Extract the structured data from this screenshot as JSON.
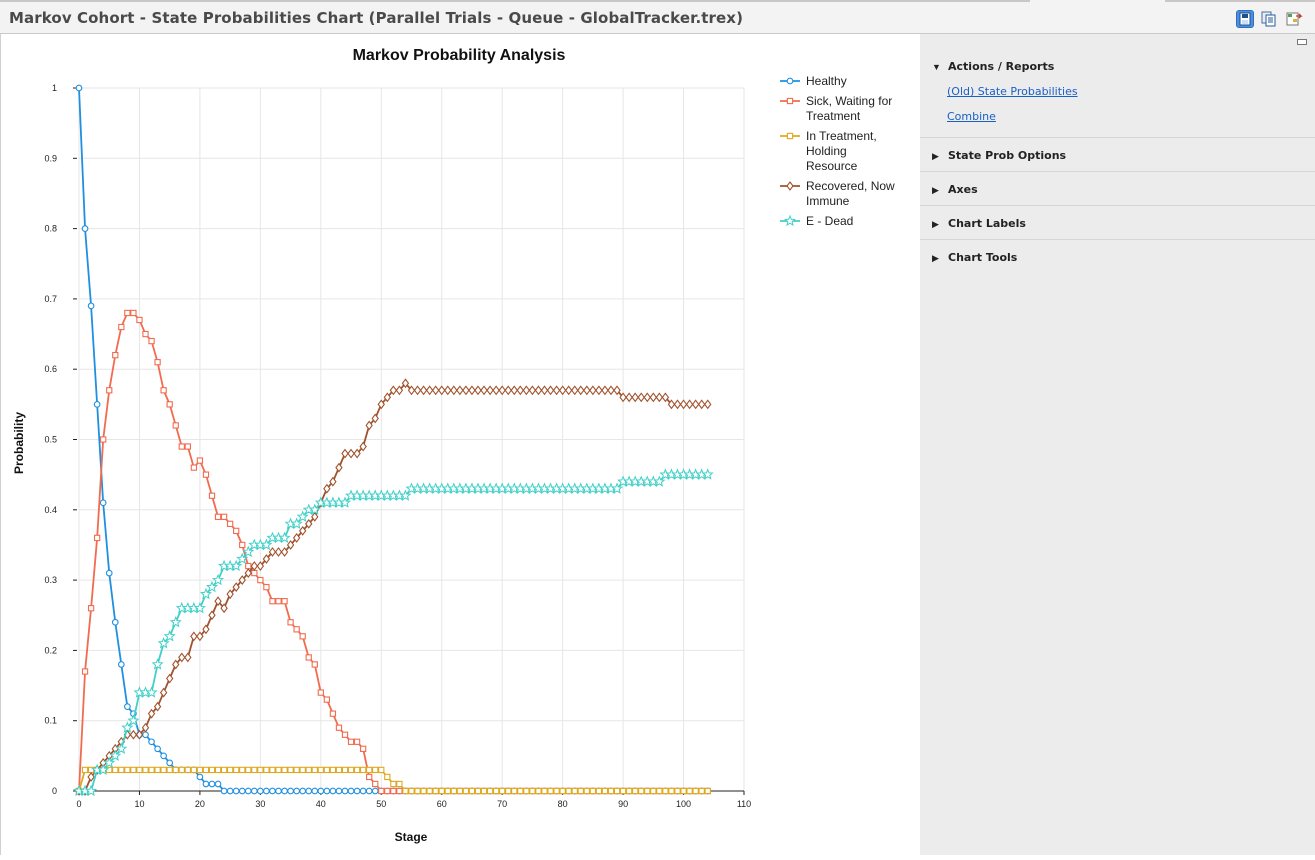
{
  "window": {
    "title": "Markov Cohort - State Probabilities Chart (Parallel Trials - Queue - GlobalTracker.trex)"
  },
  "toolbar": {
    "icons": [
      "save-icon",
      "copy-icon",
      "export-icon"
    ]
  },
  "sidebar": {
    "sections": [
      {
        "label": "Actions / Reports",
        "expanded": true,
        "links": [
          "(Old) State Probabilities",
          "Combine"
        ]
      },
      {
        "label": "State Prob Options",
        "expanded": false
      },
      {
        "label": "Axes",
        "expanded": false
      },
      {
        "label": "Chart Labels",
        "expanded": false
      },
      {
        "label": "Chart Tools",
        "expanded": false
      }
    ]
  },
  "chart_data": {
    "type": "line",
    "title": "Markov Probability Analysis",
    "xlabel": "Stage",
    "ylabel": "Probability",
    "xlim": [
      0,
      110
    ],
    "ylim": [
      0,
      1
    ],
    "x_ticks": [
      0,
      10,
      20,
      30,
      40,
      50,
      60,
      70,
      80,
      90,
      100,
      110
    ],
    "y_ticks": [
      0,
      0.1,
      0.2,
      0.3,
      0.4,
      0.5,
      0.6,
      0.7,
      0.8,
      0.9,
      1
    ],
    "y_tick_labels": [
      "0",
      "0.1",
      "0.2",
      "0.3",
      "0.4",
      "0.5",
      "0.6",
      "0.7",
      "0.8",
      "0.9",
      "1"
    ],
    "grid": true,
    "legend_position": "right",
    "x": [
      0,
      1,
      2,
      3,
      4,
      5,
      6,
      7,
      8,
      9,
      10,
      11,
      12,
      13,
      14,
      15,
      16,
      17,
      18,
      19,
      20,
      21,
      22,
      23,
      24,
      25,
      26,
      27,
      28,
      29,
      30,
      31,
      32,
      33,
      34,
      35,
      36,
      37,
      38,
      39,
      40,
      41,
      42,
      43,
      44,
      45,
      46,
      47,
      48,
      49,
      50,
      51,
      52,
      53,
      54,
      55,
      56,
      57,
      58,
      59,
      60,
      61,
      62,
      63,
      64,
      65,
      66,
      67,
      68,
      69,
      70,
      71,
      72,
      73,
      74,
      75,
      76,
      77,
      78,
      79,
      80,
      81,
      82,
      83,
      84,
      85,
      86,
      87,
      88,
      89,
      90,
      91,
      92,
      93,
      94,
      95,
      96,
      97,
      98,
      99,
      100,
      101,
      102,
      103,
      104
    ],
    "series": [
      {
        "name": "Healthy",
        "color": "#1f8fe0",
        "marker": "circle",
        "values": [
          1,
          0.8,
          0.69,
          0.55,
          0.41,
          0.31,
          0.24,
          0.18,
          0.12,
          0.11,
          0.08,
          0.08,
          0.07,
          0.06,
          0.05,
          0.04,
          0.03,
          0.03,
          0.03,
          0.03,
          0.02,
          0.01,
          0.01,
          0.01,
          0,
          0,
          0,
          0,
          0,
          0,
          0,
          0,
          0,
          0,
          0,
          0,
          0,
          0,
          0,
          0,
          0,
          0,
          0,
          0,
          0,
          0,
          0,
          0,
          0,
          0,
          0,
          0,
          0,
          0,
          0,
          0,
          0,
          0,
          0,
          0,
          0,
          0,
          0,
          0,
          0,
          0,
          0,
          0,
          0,
          0,
          0,
          0,
          0,
          0,
          0,
          0,
          0,
          0,
          0,
          0,
          0,
          0,
          0,
          0,
          0,
          0,
          0,
          0,
          0,
          0,
          0,
          0,
          0,
          0,
          0,
          0,
          0,
          0,
          0,
          0,
          0,
          0,
          0,
          0,
          0
        ]
      },
      {
        "name": "Sick, Waiting for Treatment",
        "color": "#f26b4f",
        "marker": "square",
        "values": [
          0,
          0.17,
          0.26,
          0.36,
          0.5,
          0.57,
          0.62,
          0.66,
          0.68,
          0.68,
          0.67,
          0.65,
          0.64,
          0.61,
          0.57,
          0.55,
          0.52,
          0.49,
          0.49,
          0.46,
          0.47,
          0.45,
          0.42,
          0.39,
          0.39,
          0.38,
          0.37,
          0.35,
          0.32,
          0.31,
          0.3,
          0.29,
          0.27,
          0.27,
          0.27,
          0.24,
          0.23,
          0.22,
          0.19,
          0.18,
          0.14,
          0.13,
          0.11,
          0.09,
          0.08,
          0.07,
          0.07,
          0.06,
          0.02,
          0.01,
          0,
          0,
          0,
          0,
          0,
          0,
          0,
          0,
          0,
          0,
          0,
          0,
          0,
          0,
          0,
          0,
          0,
          0,
          0,
          0,
          0,
          0,
          0,
          0,
          0,
          0,
          0,
          0,
          0,
          0,
          0,
          0,
          0,
          0,
          0,
          0,
          0,
          0,
          0,
          0,
          0,
          0,
          0,
          0,
          0,
          0,
          0,
          0,
          0,
          0,
          0,
          0,
          0,
          0,
          0
        ]
      },
      {
        "name": "In Treatment, Holding Resource",
        "color": "#e0a81e",
        "marker": "square",
        "values": [
          0,
          0.03,
          0.03,
          0.03,
          0.03,
          0.03,
          0.03,
          0.03,
          0.03,
          0.03,
          0.03,
          0.03,
          0.03,
          0.03,
          0.03,
          0.03,
          0.03,
          0.03,
          0.03,
          0.03,
          0.03,
          0.03,
          0.03,
          0.03,
          0.03,
          0.03,
          0.03,
          0.03,
          0.03,
          0.03,
          0.03,
          0.03,
          0.03,
          0.03,
          0.03,
          0.03,
          0.03,
          0.03,
          0.03,
          0.03,
          0.03,
          0.03,
          0.03,
          0.03,
          0.03,
          0.03,
          0.03,
          0.03,
          0.03,
          0.03,
          0.03,
          0.02,
          0.01,
          0.01,
          0,
          0,
          0,
          0,
          0,
          0,
          0,
          0,
          0,
          0,
          0,
          0,
          0,
          0,
          0,
          0,
          0,
          0,
          0,
          0,
          0,
          0,
          0,
          0,
          0,
          0,
          0,
          0,
          0,
          0,
          0,
          0,
          0,
          0,
          0,
          0,
          0,
          0,
          0,
          0,
          0,
          0,
          0,
          0,
          0,
          0,
          0,
          0,
          0,
          0,
          0
        ]
      },
      {
        "name": "Recovered, Now Immune",
        "color": "#a0522d",
        "marker": "diamond",
        "values": [
          0,
          0,
          0.02,
          0.03,
          0.04,
          0.05,
          0.06,
          0.07,
          0.08,
          0.08,
          0.08,
          0.09,
          0.11,
          0.12,
          0.14,
          0.16,
          0.18,
          0.19,
          0.19,
          0.22,
          0.22,
          0.23,
          0.25,
          0.27,
          0.26,
          0.28,
          0.29,
          0.3,
          0.31,
          0.32,
          0.32,
          0.33,
          0.34,
          0.34,
          0.34,
          0.35,
          0.36,
          0.37,
          0.38,
          0.39,
          0.41,
          0.43,
          0.44,
          0.46,
          0.48,
          0.48,
          0.48,
          0.49,
          0.52,
          0.53,
          0.55,
          0.56,
          0.57,
          0.57,
          0.58,
          0.57,
          0.57,
          0.57,
          0.57,
          0.57,
          0.57,
          0.57,
          0.57,
          0.57,
          0.57,
          0.57,
          0.57,
          0.57,
          0.57,
          0.57,
          0.57,
          0.57,
          0.57,
          0.57,
          0.57,
          0.57,
          0.57,
          0.57,
          0.57,
          0.57,
          0.57,
          0.57,
          0.57,
          0.57,
          0.57,
          0.57,
          0.57,
          0.57,
          0.57,
          0.57,
          0.56,
          0.56,
          0.56,
          0.56,
          0.56,
          0.56,
          0.56,
          0.56,
          0.55,
          0.55,
          0.55,
          0.55,
          0.55,
          0.55,
          0.55
        ]
      },
      {
        "name": "E - Dead",
        "color": "#40d0c8",
        "marker": "star",
        "values": [
          0,
          0,
          0,
          0.03,
          0.03,
          0.04,
          0.05,
          0.06,
          0.09,
          0.1,
          0.14,
          0.14,
          0.14,
          0.18,
          0.21,
          0.22,
          0.24,
          0.26,
          0.26,
          0.26,
          0.26,
          0.28,
          0.29,
          0.3,
          0.32,
          0.32,
          0.32,
          0.33,
          0.34,
          0.35,
          0.35,
          0.35,
          0.36,
          0.36,
          0.36,
          0.38,
          0.38,
          0.39,
          0.4,
          0.4,
          0.41,
          0.41,
          0.41,
          0.41,
          0.41,
          0.42,
          0.42,
          0.42,
          0.42,
          0.42,
          0.42,
          0.42,
          0.42,
          0.42,
          0.42,
          0.43,
          0.43,
          0.43,
          0.43,
          0.43,
          0.43,
          0.43,
          0.43,
          0.43,
          0.43,
          0.43,
          0.43,
          0.43,
          0.43,
          0.43,
          0.43,
          0.43,
          0.43,
          0.43,
          0.43,
          0.43,
          0.43,
          0.43,
          0.43,
          0.43,
          0.43,
          0.43,
          0.43,
          0.43,
          0.43,
          0.43,
          0.43,
          0.43,
          0.43,
          0.43,
          0.44,
          0.44,
          0.44,
          0.44,
          0.44,
          0.44,
          0.44,
          0.45,
          0.45,
          0.45,
          0.45,
          0.45,
          0.45,
          0.45,
          0.45
        ]
      }
    ]
  }
}
